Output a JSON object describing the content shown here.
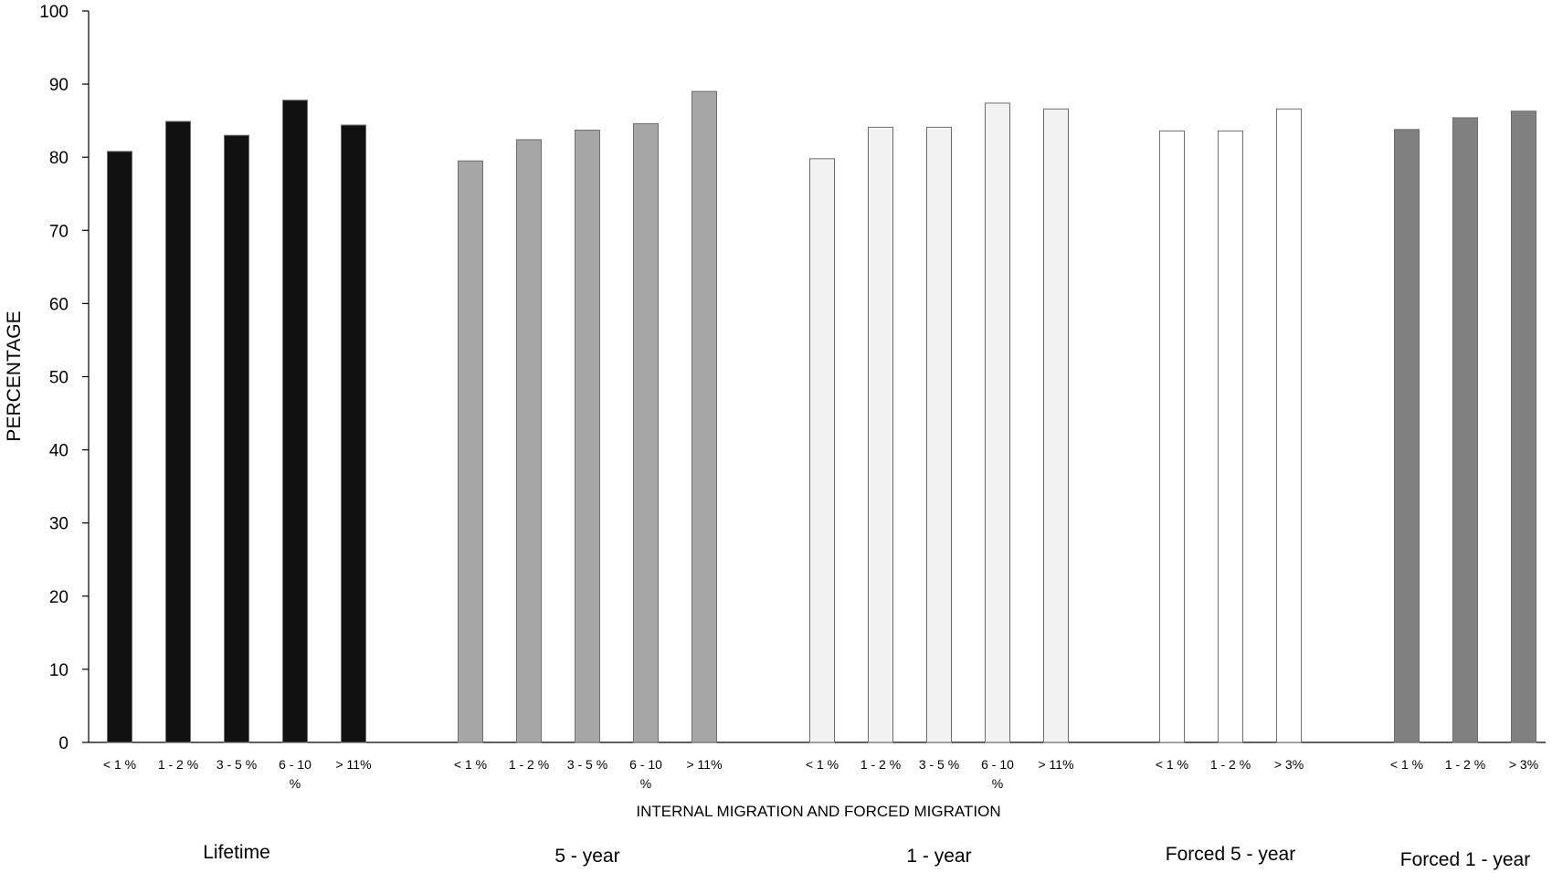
{
  "chart_data": {
    "type": "bar",
    "ylabel": "PERCENTAGE",
    "xlabel": "INTERNAL MIGRATION AND FORCED MIGRATION",
    "ylim": [
      0,
      100
    ],
    "yticks": [
      0,
      10,
      20,
      30,
      40,
      50,
      60,
      70,
      80,
      90,
      100
    ],
    "grid": false,
    "groups": [
      {
        "label": "Lifetime",
        "color": "#111111",
        "categories": [
          "< 1 %",
          "1 - 2 %",
          "3 - 5 %",
          "6 - 10 %",
          "> 11%"
        ],
        "values": [
          80.8,
          84.9,
          83.0,
          87.8,
          84.4
        ]
      },
      {
        "label": "5 - year",
        "color": "#a6a6a6",
        "categories": [
          "< 1 %",
          "1 - 2 %",
          "3 - 5 %",
          "6 - 10 %",
          "> 11%"
        ],
        "values": [
          79.5,
          82.4,
          83.7,
          84.6,
          89.0
        ]
      },
      {
        "label": "1 - year",
        "color": "#f2f2f2",
        "categories": [
          "< 1 %",
          "1 - 2 %",
          "3 - 5 %",
          "6 - 10 %",
          "> 11%"
        ],
        "values": [
          79.8,
          84.1,
          84.1,
          87.4,
          86.6
        ]
      },
      {
        "label": "Forced 5 - year",
        "color": "#ffffff",
        "categories": [
          "< 1 %",
          "1 - 2 %",
          "> 3%"
        ],
        "values": [
          83.6,
          83.6,
          86.6
        ]
      },
      {
        "label": "Forced 1 - year",
        "color": "#808080",
        "categories": [
          "< 1 %",
          "1 - 2 %",
          "> 3%"
        ],
        "values": [
          83.8,
          85.4,
          86.3
        ]
      }
    ]
  }
}
